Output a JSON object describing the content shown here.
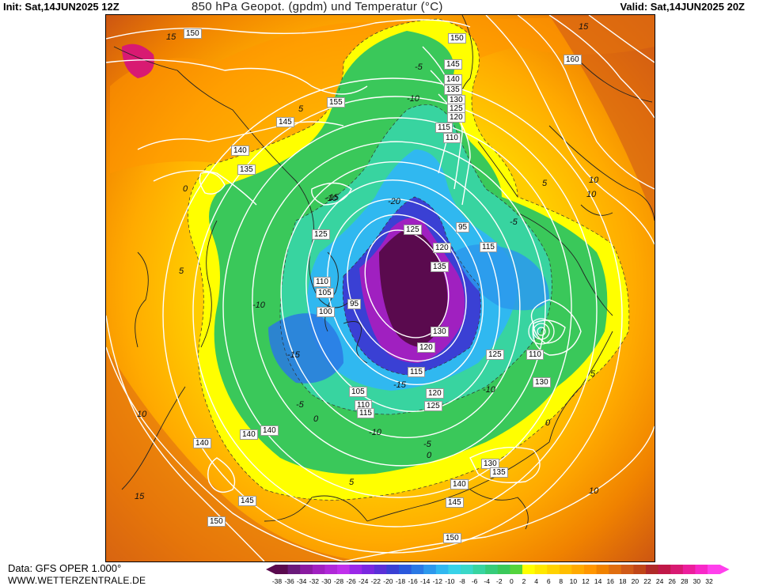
{
  "header": {
    "init": "Init: Sat,14JUN2025 12Z",
    "title": "850 hPa Geopot. (gpdm) und Temperatur (°C)",
    "valid": "Valid: Sat,14JUN2025 20Z"
  },
  "footer": {
    "data_source": "Data: GFS OPER 1.000°",
    "site": "WWW.WETTERZENTRALE.DE"
  },
  "legend": {
    "ticks": [
      "-38",
      "-36",
      "-34",
      "-32",
      "-30",
      "-28",
      "-26",
      "-24",
      "-22",
      "-20",
      "-18",
      "-16",
      "-14",
      "-12",
      "-10",
      "-8",
      "-6",
      "-4",
      "-2",
      "0",
      "2",
      "4",
      "6",
      "8",
      "10",
      "12",
      "14",
      "16",
      "18",
      "20",
      "22",
      "24",
      "26",
      "28",
      "30",
      "32"
    ],
    "colors": [
      "#5a0a4e",
      "#6a1a7a",
      "#8a1aa0",
      "#a020c0",
      "#b028d8",
      "#c030ec",
      "#9a28e8",
      "#7a28e0",
      "#5a30d8",
      "#3a40d4",
      "#2a58dc",
      "#2a78e4",
      "#2c98ec",
      "#30b8f0",
      "#38d2e8",
      "#3ad8c8",
      "#38d4a0",
      "#36cc7a",
      "#3ac85a",
      "#54d43c",
      "#ffff00",
      "#ffe800",
      "#ffd200",
      "#ffbe00",
      "#ffaa00",
      "#ff9600",
      "#f08200",
      "#e06e10",
      "#d05a18",
      "#c04618",
      "#b02a28",
      "#c01848",
      "#d81a72",
      "#ec1e9c",
      "#f828c8",
      "#ff40ec"
    ]
  },
  "map": {
    "geopotential_labels": [
      "150",
      "150",
      "160",
      "145",
      "140",
      "135",
      "130",
      "125",
      "120",
      "155",
      "145",
      "140",
      "135",
      "115",
      "110",
      "125",
      "125",
      "95",
      "135",
      "120",
      "115",
      "110",
      "105",
      "95",
      "100",
      "130",
      "120",
      "125",
      "110",
      "115",
      "130",
      "120",
      "125",
      "105",
      "110",
      "115",
      "140",
      "140",
      "140",
      "130",
      "135",
      "140",
      "145",
      "145",
      "150",
      "150"
    ],
    "temperature_labels": [
      "15",
      "5",
      "-5",
      "-10",
      "-15",
      "-20",
      "10",
      "-10",
      "5",
      "0",
      "-5",
      "-10",
      "-15",
      "10",
      "5",
      "0",
      "-10",
      "-5",
      "0",
      "5",
      "10",
      "15",
      "-15",
      "-10",
      "-5",
      "0",
      "5",
      "10",
      "15"
    ]
  },
  "colors": {
    "isohypse": "#ffffff",
    "coastline": "#222222",
    "frame": "#000000"
  }
}
